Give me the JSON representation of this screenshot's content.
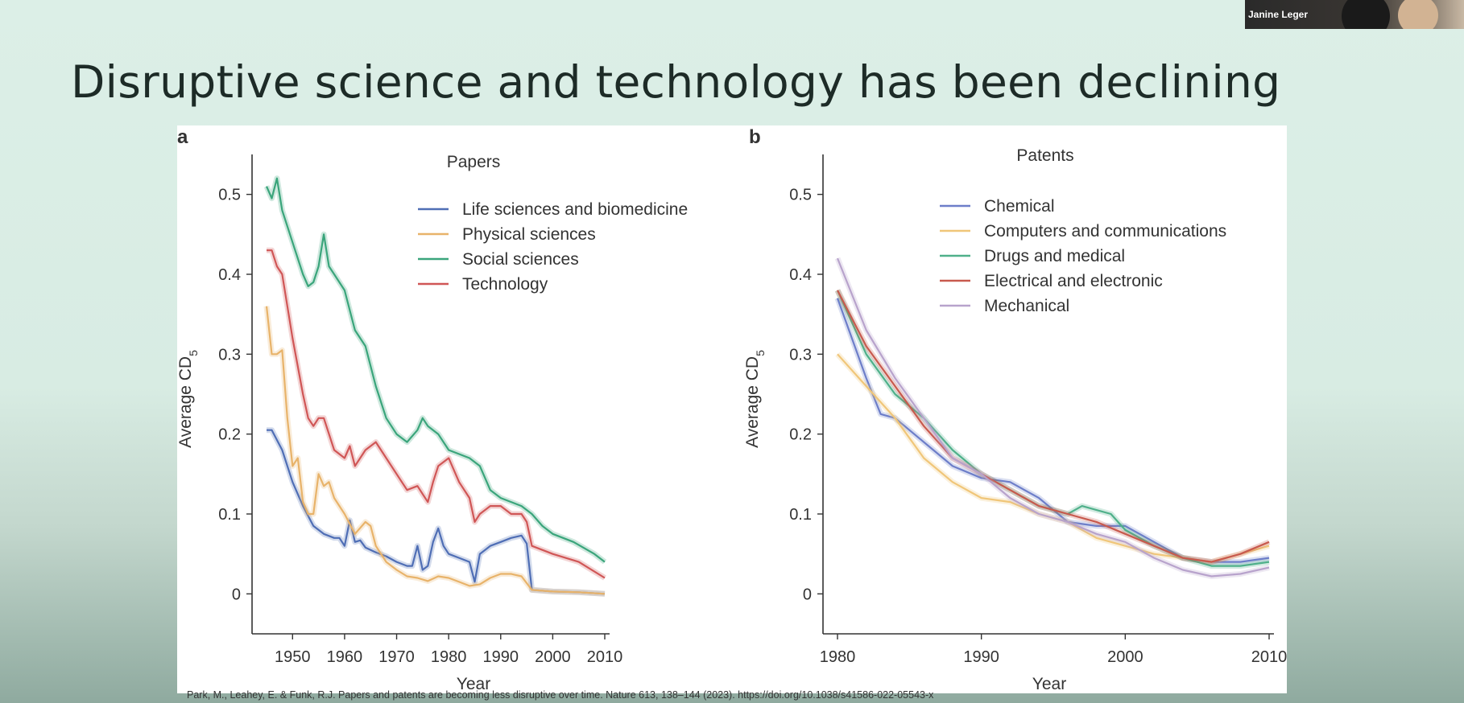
{
  "slide": {
    "title": "Disruptive science and technology has been declining",
    "citation": "Park, M., Leahey, E. & Funk, R.J. Papers and patents are becoming less disruptive over time. Nature 613, 138–144 (2023). https://doi.org/10.1038/s41586-022-05543-x",
    "presenter_name": "Janine Leger"
  },
  "chart_data": [
    {
      "panel": "a",
      "type": "line",
      "title": "Papers",
      "xlabel": "Year",
      "ylabel": "Average CD5",
      "xlim": [
        1945,
        2010
      ],
      "ylim": [
        -0.05,
        0.55
      ],
      "xticks": [
        1950,
        1960,
        1970,
        1980,
        1990,
        2000,
        2010
      ],
      "yticks": [
        0,
        0.1,
        0.2,
        0.3,
        0.4,
        0.5
      ],
      "legend_position": "top-right",
      "series": [
        {
          "name": "Life sciences and biomedicine",
          "color": "#4f6eb5",
          "x": [
            1945,
            1946,
            1948,
            1950,
            1952,
            1954,
            1956,
            1958,
            1959,
            1960,
            1961,
            1962,
            1963,
            1964,
            1966,
            1968,
            1970,
            1972,
            1973,
            1974,
            1975,
            1976,
            1977,
            1978,
            1979,
            1980,
            1982,
            1984,
            1985,
            1986,
            1988,
            1990,
            1992,
            1994,
            1995,
            1996,
            1998,
            2000,
            2005,
            2010
          ],
          "y": [
            0.205,
            0.205,
            0.18,
            0.14,
            0.11,
            0.085,
            0.075,
            0.07,
            0.07,
            0.06,
            0.092,
            0.065,
            0.067,
            0.058,
            0.052,
            0.047,
            0.04,
            0.035,
            0.035,
            0.06,
            0.03,
            0.035,
            0.065,
            0.082,
            0.06,
            0.05,
            0.045,
            0.04,
            0.015,
            0.05,
            0.06,
            0.065,
            0.07,
            0.073,
            0.063,
            0.005,
            0.004,
            0.003,
            0.002,
            0.0
          ]
        },
        {
          "name": "Physical sciences",
          "color": "#e8b36a",
          "x": [
            1945,
            1946,
            1947,
            1948,
            1949,
            1950,
            1951,
            1952,
            1953,
            1954,
            1955,
            1956,
            1957,
            1958,
            1960,
            1962,
            1964,
            1965,
            1966,
            1968,
            1970,
            1972,
            1974,
            1976,
            1978,
            1980,
            1982,
            1984,
            1986,
            1988,
            1990,
            1992,
            1994,
            1996,
            1998,
            2000,
            2005,
            2010
          ],
          "y": [
            0.36,
            0.3,
            0.3,
            0.305,
            0.22,
            0.16,
            0.17,
            0.115,
            0.1,
            0.1,
            0.15,
            0.135,
            0.14,
            0.12,
            0.1,
            0.075,
            0.09,
            0.085,
            0.06,
            0.04,
            0.03,
            0.022,
            0.02,
            0.016,
            0.022,
            0.02,
            0.015,
            0.01,
            0.012,
            0.02,
            0.025,
            0.025,
            0.022,
            0.005,
            0.004,
            0.003,
            0.002,
            0.0
          ]
        },
        {
          "name": "Social sciences",
          "color": "#3aa57b",
          "x": [
            1945,
            1946,
            1947,
            1948,
            1950,
            1952,
            1953,
            1954,
            1955,
            1956,
            1957,
            1958,
            1960,
            1962,
            1964,
            1966,
            1968,
            1970,
            1972,
            1974,
            1975,
            1976,
            1978,
            1980,
            1982,
            1984,
            1986,
            1988,
            1990,
            1992,
            1994,
            1996,
            1998,
            2000,
            2004,
            2008,
            2010
          ],
          "y": [
            0.51,
            0.495,
            0.52,
            0.48,
            0.44,
            0.4,
            0.385,
            0.39,
            0.41,
            0.45,
            0.41,
            0.4,
            0.38,
            0.33,
            0.31,
            0.26,
            0.22,
            0.2,
            0.19,
            0.205,
            0.22,
            0.21,
            0.2,
            0.18,
            0.175,
            0.17,
            0.16,
            0.13,
            0.12,
            0.115,
            0.11,
            0.1,
            0.085,
            0.075,
            0.065,
            0.05,
            0.04
          ]
        },
        {
          "name": "Technology",
          "color": "#d05656",
          "x": [
            1945,
            1946,
            1947,
            1948,
            1950,
            1952,
            1953,
            1954,
            1955,
            1956,
            1958,
            1960,
            1961,
            1962,
            1964,
            1966,
            1968,
            1970,
            1972,
            1974,
            1975,
            1976,
            1977,
            1978,
            1980,
            1982,
            1984,
            1985,
            1986,
            1988,
            1990,
            1992,
            1994,
            1995,
            1996,
            1998,
            2000,
            2005,
            2010
          ],
          "y": [
            0.43,
            0.43,
            0.41,
            0.4,
            0.32,
            0.25,
            0.22,
            0.21,
            0.22,
            0.22,
            0.18,
            0.17,
            0.185,
            0.16,
            0.18,
            0.19,
            0.17,
            0.15,
            0.13,
            0.135,
            0.125,
            0.115,
            0.14,
            0.16,
            0.17,
            0.14,
            0.12,
            0.09,
            0.1,
            0.11,
            0.11,
            0.1,
            0.1,
            0.09,
            0.06,
            0.055,
            0.05,
            0.04,
            0.02
          ]
        }
      ]
    },
    {
      "panel": "b",
      "type": "line",
      "title": "Patents",
      "xlabel": "Year",
      "ylabel": "Average CD5",
      "xlim": [
        1980,
        2010
      ],
      "ylim": [
        -0.05,
        0.55
      ],
      "xticks": [
        1980,
        1990,
        2000,
        2010
      ],
      "yticks": [
        0,
        0.1,
        0.2,
        0.3,
        0.4,
        0.5
      ],
      "legend_position": "top-right",
      "series": [
        {
          "name": "Chemical",
          "color": "#6d7ec9",
          "x": [
            1980,
            1982,
            1983,
            1984,
            1986,
            1988,
            1990,
            1992,
            1994,
            1996,
            1998,
            2000,
            2002,
            2004,
            2006,
            2008,
            2010
          ],
          "y": [
            0.37,
            0.27,
            0.225,
            0.22,
            0.19,
            0.16,
            0.145,
            0.14,
            0.12,
            0.09,
            0.085,
            0.085,
            0.065,
            0.045,
            0.04,
            0.04,
            0.045
          ]
        },
        {
          "name": "Computers and communications",
          "color": "#f0c679",
          "x": [
            1980,
            1982,
            1984,
            1986,
            1988,
            1990,
            1992,
            1994,
            1996,
            1998,
            2000,
            2002,
            2004,
            2006,
            2008,
            2010
          ],
          "y": [
            0.3,
            0.26,
            0.22,
            0.17,
            0.14,
            0.12,
            0.115,
            0.1,
            0.09,
            0.07,
            0.06,
            0.05,
            0.045,
            0.04,
            0.05,
            0.06
          ]
        },
        {
          "name": "Drugs and medical",
          "color": "#4fb08a",
          "x": [
            1980,
            1982,
            1984,
            1986,
            1988,
            1990,
            1992,
            1994,
            1996,
            1997,
            1999,
            2000,
            2002,
            2004,
            2006,
            2008,
            2010
          ],
          "y": [
            0.38,
            0.3,
            0.25,
            0.22,
            0.18,
            0.15,
            0.13,
            0.11,
            0.1,
            0.11,
            0.1,
            0.08,
            0.06,
            0.045,
            0.035,
            0.035,
            0.04
          ]
        },
        {
          "name": "Electrical and electronic",
          "color": "#c85a4e",
          "x": [
            1980,
            1982,
            1984,
            1986,
            1988,
            1990,
            1992,
            1994,
            1996,
            1998,
            2000,
            2002,
            2004,
            2006,
            2008,
            2010
          ],
          "y": [
            0.38,
            0.31,
            0.26,
            0.21,
            0.17,
            0.15,
            0.13,
            0.11,
            0.1,
            0.09,
            0.075,
            0.06,
            0.045,
            0.04,
            0.05,
            0.065
          ]
        },
        {
          "name": "Mechanical",
          "color": "#b8a3cc",
          "x": [
            1980,
            1982,
            1984,
            1986,
            1988,
            1990,
            1992,
            1994,
            1996,
            1998,
            2000,
            2002,
            2004,
            2006,
            2008,
            2010
          ],
          "y": [
            0.42,
            0.33,
            0.27,
            0.22,
            0.17,
            0.15,
            0.12,
            0.1,
            0.09,
            0.075,
            0.065,
            0.045,
            0.03,
            0.022,
            0.025,
            0.033
          ]
        }
      ]
    }
  ]
}
